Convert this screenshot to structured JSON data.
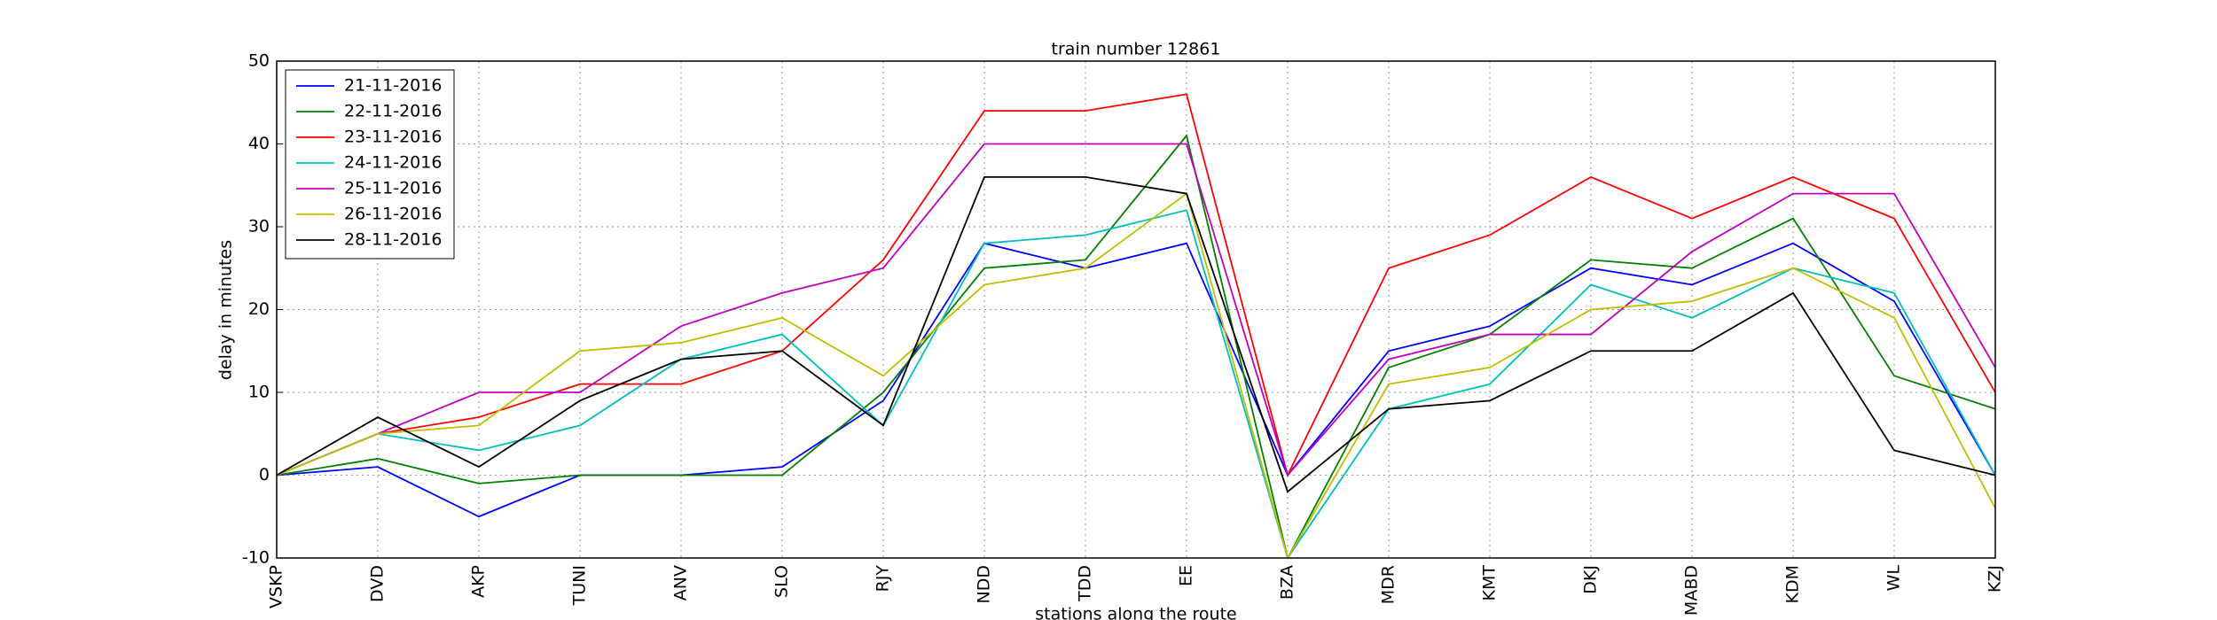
{
  "chart_data": {
    "type": "line",
    "title": "train number 12861",
    "x_label": "stations along the route",
    "y_label": "delay in minutes",
    "categories": [
      "VSKP",
      "DVD",
      "AKP",
      "TUNI",
      "ANV",
      "SLO",
      "RJY",
      "NDD",
      "TDD",
      "EE",
      "BZA",
      "MDR",
      "KMT",
      "DKJ",
      "MABD",
      "KDM",
      "WL",
      "KZJ"
    ],
    "series": [
      {
        "name": "21-11-2016",
        "color": "#0000ff",
        "values": [
          0,
          1,
          -5,
          0,
          0,
          1,
          9,
          28,
          25,
          28,
          0,
          15,
          18,
          25,
          23,
          28,
          21,
          0
        ]
      },
      {
        "name": "22-11-2016",
        "color": "#008000",
        "values": [
          0,
          2,
          -1,
          0,
          0,
          0,
          10,
          25,
          26,
          41,
          -10,
          13,
          17,
          26,
          25,
          31,
          12,
          8
        ]
      },
      {
        "name": "23-11-2016",
        "color": "#ff0000",
        "values": [
          0,
          5,
          7,
          11,
          11,
          15,
          26,
          44,
          44,
          46,
          0,
          25,
          29,
          36,
          31,
          36,
          31,
          10
        ]
      },
      {
        "name": "24-11-2016",
        "color": "#00bfbf",
        "values": [
          0,
          5,
          3,
          6,
          14,
          17,
          6,
          28,
          29,
          32,
          -10,
          8,
          11,
          23,
          19,
          25,
          22,
          0
        ]
      },
      {
        "name": "25-11-2016",
        "color": "#bf00bf",
        "values": [
          0,
          5,
          10,
          10,
          18,
          22,
          25,
          40,
          40,
          40,
          0,
          14,
          17,
          17,
          27,
          34,
          34,
          13
        ]
      },
      {
        "name": "26-11-2016",
        "color": "#bfbf00",
        "values": [
          0,
          5,
          6,
          15,
          16,
          19,
          12,
          23,
          25,
          34,
          -10,
          11,
          13,
          20,
          21,
          25,
          19,
          -4
        ]
      },
      {
        "name": "28-11-2016",
        "color": "#000000",
        "values": [
          0,
          7,
          1,
          9,
          14,
          15,
          6,
          36,
          36,
          34,
          -2,
          8,
          9,
          15,
          15,
          22,
          3,
          0
        ]
      }
    ],
    "ylim": [
      -10,
      50
    ],
    "yticks": [
      -10,
      0,
      10,
      20,
      30,
      40,
      50
    ],
    "grid": true,
    "legend": "upper left"
  }
}
